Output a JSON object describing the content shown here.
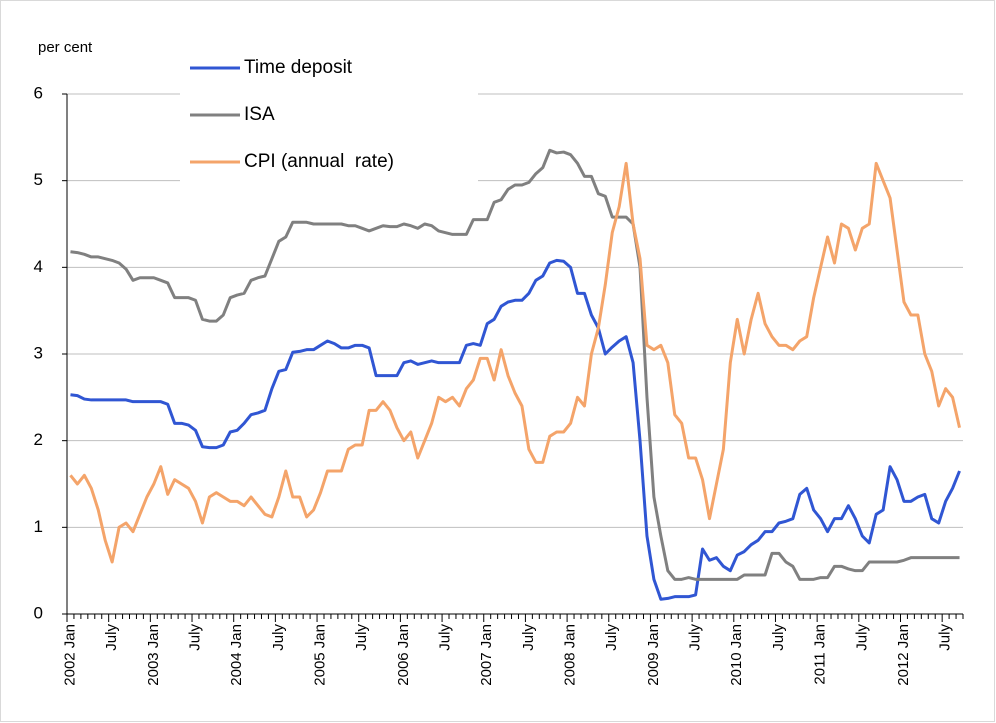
{
  "chart_data": {
    "type": "line",
    "y_label": "per cent",
    "categories": [
      "2002 Jan",
      null,
      null,
      null,
      null,
      null,
      "July",
      null,
      null,
      null,
      null,
      null,
      "2003 Jan",
      null,
      null,
      null,
      null,
      null,
      "July",
      null,
      null,
      null,
      null,
      null,
      "2004 Jan",
      null,
      null,
      null,
      null,
      null,
      "July",
      null,
      null,
      null,
      null,
      null,
      "2005 Jan",
      null,
      null,
      null,
      null,
      null,
      "July",
      null,
      null,
      null,
      null,
      null,
      "2006 Jan",
      null,
      null,
      null,
      null,
      null,
      "July",
      null,
      null,
      null,
      null,
      null,
      "2007 Jan",
      null,
      null,
      null,
      null,
      null,
      "July",
      null,
      null,
      null,
      null,
      null,
      "2008 Jan",
      null,
      null,
      null,
      null,
      null,
      "July",
      null,
      null,
      null,
      null,
      null,
      "2009 Jan",
      null,
      null,
      null,
      null,
      null,
      "July",
      null,
      null,
      null,
      null,
      null,
      "2010 Jan",
      null,
      null,
      null,
      null,
      null,
      "July",
      null,
      null,
      null,
      null,
      null,
      "2011 Jan",
      null,
      null,
      null,
      null,
      null,
      "July",
      null,
      null,
      null,
      null,
      null,
      "2012 Jan",
      null,
      null,
      null,
      null,
      null,
      "July",
      null,
      null
    ],
    "series": [
      {
        "name": "Time deposit",
        "color": "#3056d3",
        "values": [
          2.53,
          2.52,
          2.48,
          2.47,
          2.47,
          2.47,
          2.47,
          2.47,
          2.47,
          2.45,
          2.45,
          2.45,
          2.45,
          2.45,
          2.42,
          2.2,
          2.2,
          2.18,
          2.12,
          1.93,
          1.92,
          1.92,
          1.95,
          2.1,
          2.12,
          2.2,
          2.3,
          2.32,
          2.35,
          2.6,
          2.8,
          2.82,
          3.02,
          3.03,
          3.05,
          3.05,
          3.1,
          3.15,
          3.12,
          3.07,
          3.07,
          3.1,
          3.1,
          3.07,
          2.75,
          2.75,
          2.75,
          2.75,
          2.9,
          2.92,
          2.88,
          2.9,
          2.92,
          2.9,
          2.9,
          2.9,
          2.9,
          3.1,
          3.12,
          3.1,
          3.35,
          3.4,
          3.55,
          3.6,
          3.62,
          3.62,
          3.7,
          3.85,
          3.9,
          4.05,
          4.08,
          4.07,
          4.0,
          3.7,
          3.7,
          3.45,
          3.3,
          3.0,
          3.08,
          3.15,
          3.2,
          2.9,
          2.0,
          0.9,
          0.4,
          0.17,
          0.18,
          0.2,
          0.2,
          0.2,
          0.22,
          0.75,
          0.62,
          0.65,
          0.55,
          0.5,
          0.68,
          0.72,
          0.8,
          0.85,
          0.95,
          0.95,
          1.05,
          1.07,
          1.1,
          1.38,
          1.45,
          1.2,
          1.1,
          0.95,
          1.1,
          1.1,
          1.25,
          1.1,
          0.9,
          0.82,
          1.15,
          1.2,
          1.7,
          1.55,
          1.3,
          1.3,
          1.35,
          1.38,
          1.1,
          1.05,
          1.3,
          1.45,
          1.65
        ]
      },
      {
        "name": "ISA",
        "color": "#808080",
        "values": [
          4.18,
          4.17,
          4.15,
          4.12,
          4.12,
          4.1,
          4.08,
          4.05,
          3.98,
          3.85,
          3.88,
          3.88,
          3.88,
          3.85,
          3.82,
          3.65,
          3.65,
          3.65,
          3.62,
          3.4,
          3.38,
          3.38,
          3.45,
          3.65,
          3.68,
          3.7,
          3.85,
          3.88,
          3.9,
          4.1,
          4.3,
          4.35,
          4.52,
          4.52,
          4.52,
          4.5,
          4.5,
          4.5,
          4.5,
          4.5,
          4.48,
          4.48,
          4.45,
          4.42,
          4.45,
          4.48,
          4.47,
          4.47,
          4.5,
          4.48,
          4.45,
          4.5,
          4.48,
          4.42,
          4.4,
          4.38,
          4.38,
          4.38,
          4.55,
          4.55,
          4.55,
          4.75,
          4.78,
          4.9,
          4.95,
          4.95,
          4.98,
          5.08,
          5.15,
          5.35,
          5.32,
          5.33,
          5.3,
          5.2,
          5.05,
          5.05,
          4.85,
          4.82,
          4.58,
          4.58,
          4.58,
          4.5,
          4.0,
          2.5,
          1.35,
          0.9,
          0.5,
          0.4,
          0.4,
          0.42,
          0.4,
          0.4,
          0.4,
          0.4,
          0.4,
          0.4,
          0.4,
          0.45,
          0.45,
          0.45,
          0.45,
          0.7,
          0.7,
          0.6,
          0.55,
          0.4,
          0.4,
          0.4,
          0.42,
          0.42,
          0.55,
          0.55,
          0.52,
          0.5,
          0.5,
          0.6,
          0.6,
          0.6,
          0.6,
          0.6,
          0.62,
          0.65,
          0.65,
          0.65,
          0.65,
          0.65,
          0.65,
          0.65,
          0.65
        ]
      },
      {
        "name": "CPI (annual  rate)",
        "color": "#f4a46a",
        "values": [
          1.6,
          1.5,
          1.6,
          1.45,
          1.2,
          0.85,
          0.6,
          1.0,
          1.05,
          0.95,
          1.15,
          1.35,
          1.5,
          1.7,
          1.38,
          1.55,
          1.5,
          1.45,
          1.3,
          1.05,
          1.35,
          1.4,
          1.35,
          1.3,
          1.3,
          1.25,
          1.35,
          1.25,
          1.15,
          1.12,
          1.35,
          1.65,
          1.35,
          1.35,
          1.12,
          1.2,
          1.4,
          1.65,
          1.65,
          1.65,
          1.9,
          1.95,
          1.95,
          2.35,
          2.35,
          2.45,
          2.35,
          2.15,
          2.0,
          2.1,
          1.8,
          2.0,
          2.2,
          2.5,
          2.45,
          2.5,
          2.4,
          2.6,
          2.7,
          2.95,
          2.95,
          2.7,
          3.05,
          2.75,
          2.55,
          2.4,
          1.9,
          1.75,
          1.75,
          2.05,
          2.1,
          2.1,
          2.2,
          2.5,
          2.4,
          3.0,
          3.3,
          3.8,
          4.4,
          4.7,
          5.2,
          4.5,
          4.1,
          3.1,
          3.05,
          3.1,
          2.9,
          2.3,
          2.2,
          1.8,
          1.8,
          1.55,
          1.1,
          1.5,
          1.9,
          2.9,
          3.4,
          3.0,
          3.4,
          3.7,
          3.35,
          3.2,
          3.1,
          3.1,
          3.05,
          3.15,
          3.2,
          3.65,
          4.0,
          4.35,
          4.05,
          4.5,
          4.45,
          4.2,
          4.45,
          4.5,
          5.2,
          5.0,
          4.8,
          4.2,
          3.6,
          3.45,
          3.45,
          3.0,
          2.8,
          2.4,
          2.6,
          2.5,
          2.15
        ]
      }
    ],
    "ylim": [
      0,
      6
    ],
    "yticks": [
      0,
      1,
      2,
      3,
      4,
      5,
      6
    ],
    "grid": true,
    "legend": "upper-left"
  }
}
